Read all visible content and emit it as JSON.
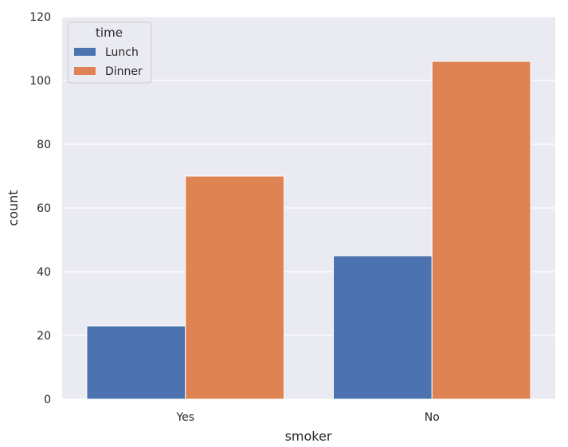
{
  "chart_data": {
    "type": "bar",
    "categories": [
      "Yes",
      "No"
    ],
    "series": [
      {
        "name": "Lunch",
        "values": [
          23,
          45
        ],
        "color": "#4c72b0"
      },
      {
        "name": "Dinner",
        "values": [
          70,
          106
        ],
        "color": "#dd8452"
      }
    ],
    "xlabel": "smoker",
    "ylabel": "count",
    "ylim": [
      0,
      120
    ],
    "yticks": [
      0,
      20,
      40,
      60,
      80,
      100,
      120
    ],
    "legend": {
      "title": "time",
      "position": "top-left"
    },
    "grid": true,
    "background": "#eaeaf2"
  }
}
